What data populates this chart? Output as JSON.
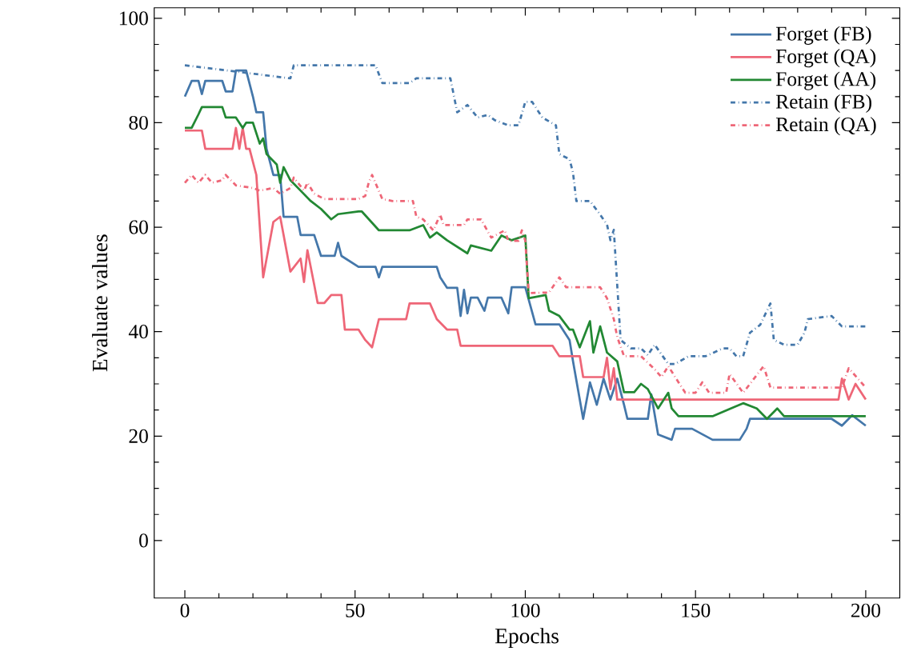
{
  "chart_data": {
    "type": "line",
    "xlabel": "Epochs",
    "ylabel": "Evaluate values",
    "xlim": [
      -9,
      210
    ],
    "ylim": [
      -11,
      102
    ],
    "xticks": [
      0,
      50,
      100,
      150,
      200
    ],
    "yticks": [
      0,
      20,
      40,
      60,
      80,
      100
    ],
    "grid": false,
    "legend": "top right",
    "marker": "none",
    "series": [
      {
        "name": "Forget (FB)",
        "color": "#4477aa",
        "line_style": "solid",
        "x": [
          0,
          2,
          4,
          5,
          6,
          11,
          12,
          14,
          15,
          18,
          20,
          21,
          23,
          24,
          26,
          28,
          29,
          33,
          34,
          38,
          40,
          44,
          45,
          46,
          51,
          56,
          57,
          58,
          74,
          75,
          77,
          80,
          81,
          82,
          83,
          84,
          86,
          88,
          89,
          93,
          95,
          96,
          100,
          103,
          110,
          113,
          114,
          117,
          119,
          121,
          123,
          125,
          127,
          129,
          130,
          136,
          137,
          139,
          143,
          144,
          149,
          155,
          163,
          165,
          166,
          180,
          190,
          193,
          196,
          200
        ],
        "values": [
          85,
          88,
          88,
          85.5,
          88,
          88,
          86,
          86,
          90,
          90,
          85,
          82,
          82,
          75,
          70,
          70,
          62,
          62,
          58.5,
          58.5,
          54.5,
          54.5,
          57,
          54.5,
          52.4,
          52.4,
          50.4,
          52.4,
          52.4,
          50.4,
          48.4,
          48.4,
          43,
          48,
          43.5,
          46.5,
          46.5,
          44,
          46.5,
          46.5,
          43.5,
          48.5,
          48.5,
          41.4,
          41.4,
          38.4,
          34.4,
          23.3,
          30.3,
          26,
          31,
          27,
          31,
          26,
          23.3,
          23.3,
          28,
          20.3,
          19.3,
          21.4,
          21.4,
          19.3,
          19.3,
          21.4,
          23.3,
          23.3,
          23.3,
          22,
          24,
          22
        ]
      },
      {
        "name": "Forget (QA)",
        "color": "#ee6677",
        "line_style": "solid",
        "x": [
          0,
          5,
          6,
          14,
          15,
          16,
          17,
          18,
          19,
          21,
          23,
          26,
          28,
          29,
          31,
          34,
          35,
          36,
          38,
          39,
          41,
          43,
          46,
          47,
          51,
          53,
          55,
          57,
          65,
          66,
          72,
          74,
          77,
          80,
          81,
          108,
          110,
          116,
          117,
          123,
          124,
          125,
          126,
          127,
          192,
          193,
          195,
          197,
          200
        ],
        "values": [
          78.5,
          78.5,
          75,
          75,
          79,
          75,
          79,
          75,
          75,
          70,
          50.4,
          61,
          62,
          58.5,
          51.5,
          54,
          49.5,
          55.6,
          49,
          45.5,
          45.5,
          47,
          47,
          40.4,
          40.4,
          38.4,
          37,
          42.4,
          42.4,
          45.4,
          45.4,
          42.4,
          40.4,
          40.4,
          37.3,
          37.3,
          35.3,
          35.3,
          31.3,
          31.3,
          35,
          29,
          33,
          27,
          27,
          31,
          27,
          30,
          27
        ]
      },
      {
        "name": "Forget (AA)",
        "color": "#228833",
        "line_style": "solid",
        "x": [
          0,
          2,
          4,
          5,
          11,
          12,
          15,
          17,
          18,
          20,
          22,
          23,
          24,
          27,
          28,
          29,
          31,
          34,
          37,
          40,
          43,
          45,
          51,
          52,
          57,
          66,
          70,
          72,
          74,
          77,
          83,
          84,
          90,
          93,
          96,
          100,
          101,
          106,
          107,
          110,
          113,
          114,
          116,
          119,
          120,
          122,
          124,
          127,
          129,
          132,
          134,
          136,
          139,
          142,
          143,
          145,
          155,
          164,
          168,
          171,
          174,
          176,
          200
        ],
        "values": [
          79,
          79,
          81.6,
          83,
          83,
          81,
          81,
          79,
          80,
          80,
          76,
          77,
          74,
          72,
          68.5,
          71.5,
          69,
          67,
          65,
          63.5,
          61.5,
          62.5,
          63,
          63,
          59.4,
          59.4,
          60.4,
          58,
          59,
          57.5,
          55,
          56.5,
          55.5,
          58.4,
          57.5,
          58.4,
          46.4,
          47,
          44,
          43,
          40.4,
          40.4,
          37,
          42,
          36,
          41,
          36,
          34.3,
          28.4,
          28.4,
          30,
          29,
          25.3,
          28.3,
          25.3,
          23.8,
          23.8,
          26.3,
          25.3,
          23.3,
          25.3,
          23.8,
          23.8
        ]
      },
      {
        "name": "Retain (FB)",
        "color": "#4477aa",
        "line_style": "dashdot",
        "x": [
          0,
          31,
          32,
          56,
          58,
          66,
          68,
          78,
          80,
          83,
          86,
          89,
          91,
          95,
          98,
          100,
          102,
          105,
          109,
          110,
          113,
          114,
          115,
          119,
          122,
          124,
          125,
          126,
          128,
          131,
          134,
          136,
          138,
          142,
          144,
          148,
          153,
          158,
          160,
          162,
          164,
          166,
          169,
          172,
          173,
          176,
          180,
          182,
          183,
          190,
          193,
          200
        ],
        "values": [
          91,
          88.5,
          91,
          91,
          87.6,
          87.6,
          88.5,
          88.5,
          82,
          83.4,
          81,
          81.5,
          80.5,
          79.5,
          79.5,
          84,
          84,
          81,
          79.5,
          74,
          73,
          70.5,
          65,
          65,
          62.4,
          60.5,
          57.5,
          59.5,
          38.4,
          36.8,
          36.8,
          35.5,
          37.5,
          33.8,
          33.8,
          35.3,
          35.3,
          36.8,
          36.8,
          35.3,
          35.3,
          39.8,
          41.3,
          45.4,
          38.4,
          37.5,
          37.5,
          39.8,
          42.4,
          43,
          41,
          41
        ]
      },
      {
        "name": "Retain (QA)",
        "color": "#ee6677",
        "line_style": "dashdot",
        "x": [
          0,
          2,
          4,
          6,
          8,
          11,
          12,
          15,
          20,
          22,
          26,
          28,
          31,
          32,
          35,
          36,
          38,
          41,
          51,
          53,
          54,
          55,
          58,
          61,
          67,
          68,
          70,
          73,
          75,
          76,
          82,
          83,
          87,
          90,
          94,
          95,
          98,
          99,
          100,
          101,
          107,
          108,
          110,
          112,
          122,
          124,
          126,
          127,
          129,
          134,
          138,
          140,
          142,
          145,
          147,
          150,
          152,
          154,
          159,
          160,
          164,
          170,
          172,
          193,
          195,
          200
        ],
        "values": [
          68.5,
          70,
          68.5,
          70,
          68.5,
          69,
          70,
          68,
          67.5,
          67,
          67.5,
          66.4,
          67.5,
          69.5,
          67,
          68.5,
          66.4,
          65.4,
          65.4,
          66,
          68.5,
          70,
          65.4,
          65,
          65,
          62,
          61.5,
          59.4,
          62.4,
          60.4,
          60.4,
          61.5,
          61.5,
          58,
          59.4,
          57.4,
          57.4,
          59.4,
          57.4,
          47.4,
          47.5,
          48.5,
          50.4,
          48.5,
          48.5,
          46.4,
          42.4,
          39,
          35.3,
          35.3,
          32.8,
          31.3,
          33.4,
          30.3,
          28.3,
          28.3,
          30.3,
          28.3,
          28.3,
          31.9,
          28.3,
          33.4,
          29.3,
          29.3,
          33,
          29.3
        ]
      }
    ]
  }
}
